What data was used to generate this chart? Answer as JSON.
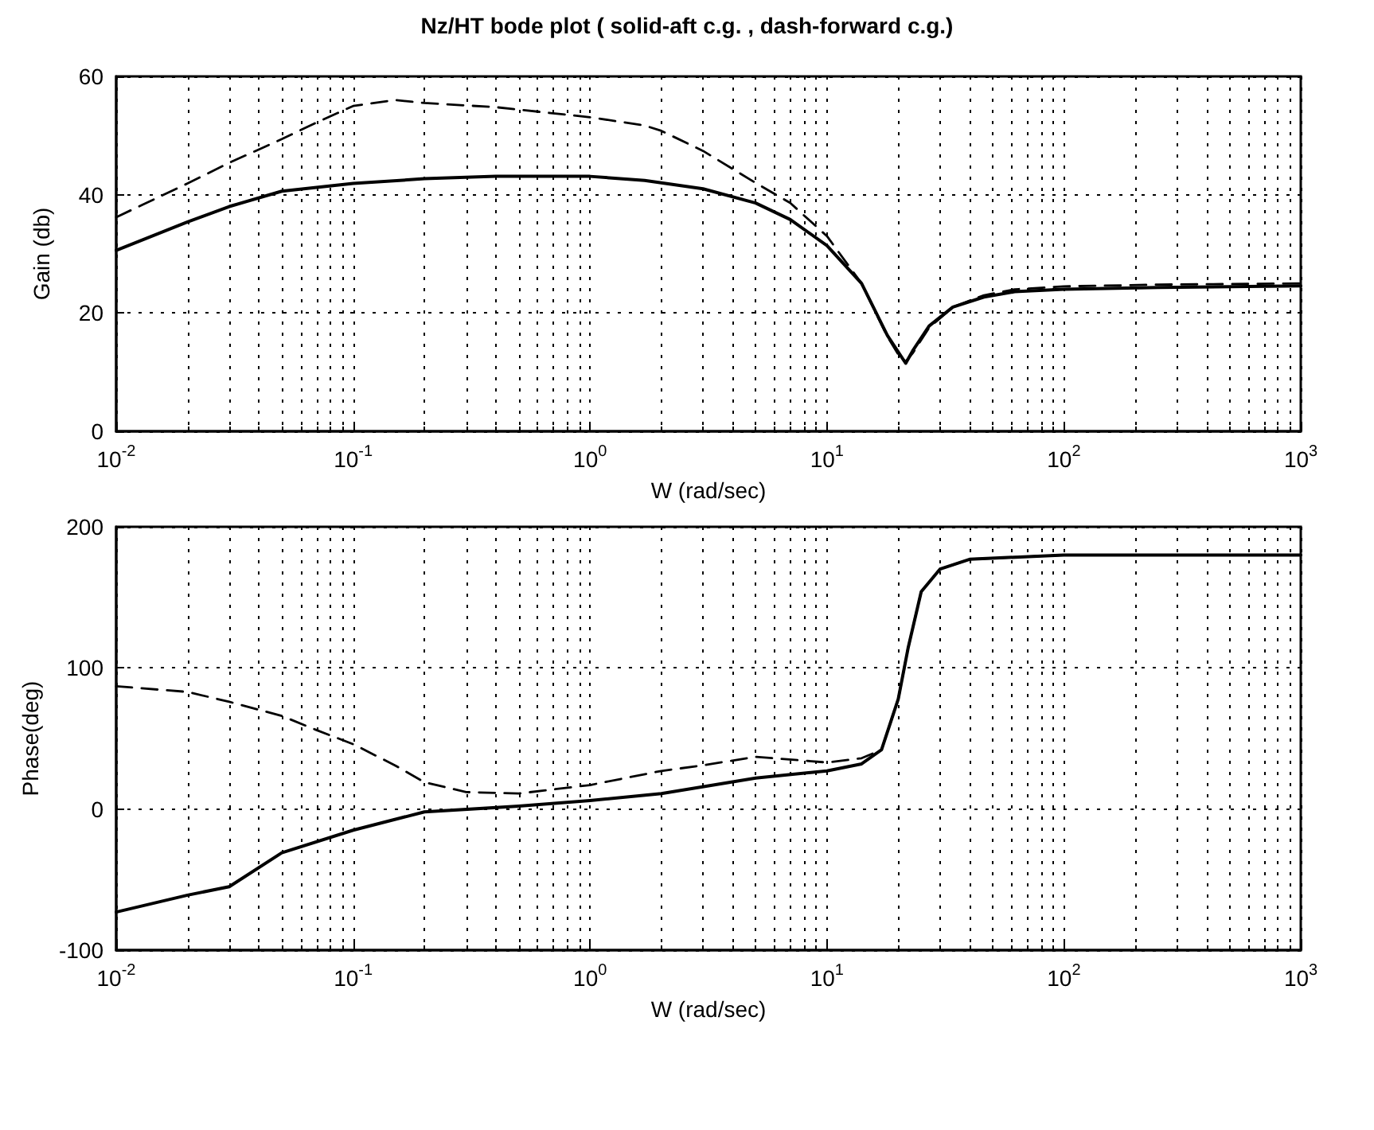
{
  "chart_data": [
    {
      "type": "line",
      "title": "Nz/HT bode plot ( solid-aft c.g. , dash-forward c.g.)",
      "xlabel": "W (rad/sec)",
      "ylabel": "Gain (db)",
      "log": "x",
      "grid": true,
      "marker": "none",
      "xlim": [
        0.01,
        1000
      ],
      "xticks": [
        {
          "value": 0.01,
          "label": "10$^{-2}$"
        },
        {
          "value": 0.1,
          "label": "10$^{-1}$"
        },
        {
          "value": 1,
          "label": "10$^{0}$"
        },
        {
          "value": 10,
          "label": "10$^{1}$"
        },
        {
          "value": 100,
          "label": "10$^{2}$"
        },
        {
          "value": 1000,
          "label": "10$^{3}$"
        }
      ],
      "ylim": [
        0,
        60
      ],
      "yticks": [
        0,
        20,
        40,
        60
      ],
      "series": [
        {
          "color": "#000000",
          "line_style": "solid",
          "x": [
            0.01,
            0.02,
            0.03,
            0.05,
            0.1,
            0.2,
            0.4,
            1,
            1.7,
            3,
            5,
            7,
            10,
            14,
            18,
            20,
            21.5,
            23,
            27,
            34,
            46,
            62,
            100,
            250,
            1000
          ],
          "values": [
            30.6,
            35.4,
            38,
            40.6,
            41.9,
            42.7,
            43.1,
            43.1,
            42.4,
            41,
            38.6,
            35.8,
            31.4,
            25,
            16.2,
            13.4,
            11.5,
            13.6,
            17.8,
            21,
            22.7,
            23.6,
            24,
            24.3,
            24.6
          ]
        },
        {
          "color": "#000000",
          "line_style": "dashed",
          "x": [
            0.01,
            0.02,
            0.03,
            0.05,
            0.07,
            0.1,
            0.15,
            0.2,
            0.4,
            1,
            1.7,
            2,
            3,
            5,
            7,
            10,
            14,
            18,
            20,
            21.5,
            23,
            27,
            34,
            46,
            62,
            100,
            250,
            1000
          ],
          "values": [
            36.2,
            41.9,
            45.4,
            49.4,
            52.2,
            55,
            56,
            55.5,
            54.8,
            53.1,
            51.7,
            50.8,
            47.4,
            42,
            38.6,
            33,
            25,
            16,
            13,
            11.8,
            13.2,
            17.5,
            21,
            23,
            24,
            24.5,
            24.8,
            25
          ]
        }
      ]
    },
    {
      "type": "line",
      "xlabel": "W (rad/sec)",
      "ylabel": "Phase(deg)",
      "log": "x",
      "grid": true,
      "marker": "none",
      "xlim": [
        0.01,
        1000
      ],
      "xticks": [
        {
          "value": 0.01,
          "label": "10$^{-2}$"
        },
        {
          "value": 0.1,
          "label": "10$^{-1}$"
        },
        {
          "value": 1,
          "label": "10$^{0}$"
        },
        {
          "value": 10,
          "label": "10$^{1}$"
        },
        {
          "value": 100,
          "label": "10$^{2}$"
        },
        {
          "value": 1000,
          "label": "10$^{3}$"
        }
      ],
      "ylim": [
        -100,
        200
      ],
      "yticks": [
        -100,
        0,
        100,
        200
      ],
      "series": [
        {
          "color": "#000000",
          "line_style": "solid",
          "x": [
            0.01,
            0.02,
            0.03,
            0.05,
            0.1,
            0.2,
            0.5,
            1,
            2,
            5,
            10,
            14,
            17,
            20,
            22,
            25,
            30,
            40,
            100,
            1000
          ],
          "values": [
            -73,
            -61,
            -55,
            -31,
            -15,
            -2,
            2,
            6,
            11,
            22,
            27,
            32,
            42,
            78,
            114,
            154,
            170,
            177,
            180,
            180
          ]
        },
        {
          "color": "#000000",
          "line_style": "dashed",
          "x": [
            0.01,
            0.02,
            0.03,
            0.05,
            0.07,
            0.1,
            0.15,
            0.2,
            0.3,
            0.5,
            1,
            2,
            3,
            5,
            10,
            14,
            17,
            20,
            22,
            25,
            30,
            40,
            100,
            1000
          ],
          "values": [
            87,
            83,
            76,
            66,
            56,
            46,
            31,
            19,
            12,
            11,
            17,
            27,
            31,
            37,
            33,
            36,
            42,
            78,
            114,
            154,
            170,
            177,
            180,
            180
          ]
        }
      ]
    }
  ]
}
